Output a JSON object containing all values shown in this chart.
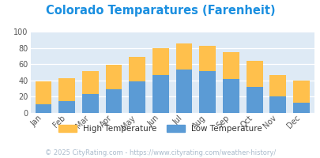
{
  "title": "Colorado Temparatures (Farenheit)",
  "title_color": "#1a8fe0",
  "months": [
    "Jan",
    "Feb",
    "Mar",
    "Apr",
    "May",
    "Jun",
    "Jul",
    "Aug",
    "Sep",
    "Oct",
    "Nov",
    "Dec"
  ],
  "low_temps": [
    11,
    15,
    23,
    29,
    39,
    47,
    53,
    51,
    42,
    32,
    20,
    13
  ],
  "high_temps": [
    39,
    43,
    51,
    59,
    69,
    80,
    85,
    83,
    75,
    64,
    47,
    40
  ],
  "low_color": "#5b9bd5",
  "high_color": "#ffc04c",
  "plot_bg": "#deeaf5",
  "ylim": [
    0,
    100
  ],
  "yticks": [
    0,
    20,
    40,
    60,
    80,
    100
  ],
  "legend_high": "High Temperature",
  "legend_low": "Low Temperature",
  "footer": "© 2025 CityRating.com - https://www.cityrating.com/weather-history/",
  "footer_color": "#aabbcc",
  "footer_fontsize": 6.0,
  "title_fontsize": 10.5,
  "axis_label_fontsize": 7.0,
  "legend_fontsize": 7.5
}
